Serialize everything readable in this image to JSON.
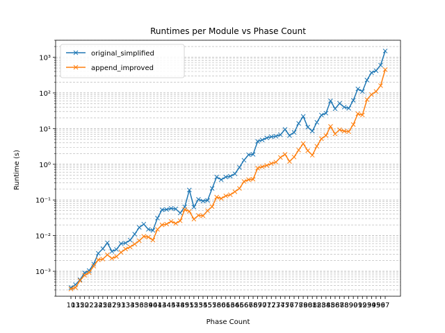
{
  "chart_data": {
    "type": "line",
    "title": "Runtimes per Module vs Phase Count",
    "xlabel": "Phase Count",
    "ylabel": "Runtime (s)",
    "yscale": "log",
    "ylim": [
      0.0002,
      3000
    ],
    "grid": "y-major-and-minor-dashed",
    "legend_position": "top-left",
    "x_tick_labels_overlapping": true,
    "series": [
      {
        "name": "original_simplified",
        "color": "#1f77b4",
        "marker": "x",
        "values": [
          0.00035,
          0.00042,
          0.00058,
          0.0009,
          0.00105,
          0.0016,
          0.0032,
          0.0043,
          0.0063,
          0.0036,
          0.0041,
          0.006,
          0.0062,
          0.0075,
          0.011,
          0.017,
          0.021,
          0.015,
          0.014,
          0.031,
          0.053,
          0.054,
          0.058,
          0.056,
          0.043,
          0.064,
          0.19,
          0.063,
          0.104,
          0.093,
          0.097,
          0.21,
          0.44,
          0.37,
          0.44,
          0.46,
          0.54,
          0.82,
          1.3,
          1.85,
          1.9,
          4.4,
          4.8,
          5.5,
          5.9,
          6.1,
          6.7,
          9.5,
          6.4,
          7.8,
          14,
          22,
          11,
          8.5,
          15,
          24,
          27,
          60,
          36,
          51,
          40,
          37,
          62,
          130,
          110,
          230,
          370,
          420,
          600,
          1500
        ]
      },
      {
        "name": "append_improved",
        "color": "#ff7f0e",
        "marker": "x",
        "values": [
          0.00032,
          0.00035,
          0.00055,
          0.00078,
          0.00092,
          0.0014,
          0.0021,
          0.0022,
          0.0029,
          0.0023,
          0.0026,
          0.0034,
          0.0042,
          0.0048,
          0.0058,
          0.0072,
          0.0095,
          0.0091,
          0.0075,
          0.015,
          0.02,
          0.021,
          0.025,
          0.022,
          0.026,
          0.054,
          0.048,
          0.029,
          0.037,
          0.036,
          0.05,
          0.065,
          0.12,
          0.11,
          0.13,
          0.14,
          0.17,
          0.21,
          0.33,
          0.37,
          0.38,
          0.78,
          0.85,
          0.93,
          1.05,
          1.15,
          1.55,
          1.9,
          1.2,
          1.6,
          2.5,
          3.8,
          2.4,
          1.8,
          3.2,
          5.2,
          6.4,
          11.5,
          7.1,
          9.3,
          8.5,
          8.2,
          13,
          26,
          24,
          65,
          90,
          110,
          160,
          450
        ]
      }
    ],
    "x_tick_labels": [
      "10",
      "13",
      "15",
      "20",
      "22",
      "23",
      "24",
      "25",
      "26",
      "27",
      "29",
      "31",
      "33",
      "34",
      "35",
      "36",
      "38",
      "39",
      "40",
      "41",
      "43",
      "44",
      "45",
      "47",
      "48",
      "49",
      "51",
      "52",
      "53",
      "54",
      "55",
      "57",
      "58",
      "60",
      "61",
      "63",
      "64",
      "65",
      "66",
      "67",
      "68",
      "69",
      "70",
      "71",
      "72",
      "73",
      "74",
      "75",
      "76",
      "77",
      "78",
      "79",
      "80",
      "81",
      "82",
      "83",
      "84",
      "85",
      "86",
      "87",
      "88",
      "89",
      "90",
      "91",
      "92",
      "93",
      "94",
      "95",
      "96",
      "97"
    ],
    "y_tick_labels": [
      "10⁻³",
      "10⁻²",
      "10⁻¹",
      "10⁰",
      "10¹",
      "10²",
      "10³"
    ],
    "y_tick_exponents": [
      -3,
      -2,
      -1,
      0,
      1,
      2,
      3
    ]
  }
}
